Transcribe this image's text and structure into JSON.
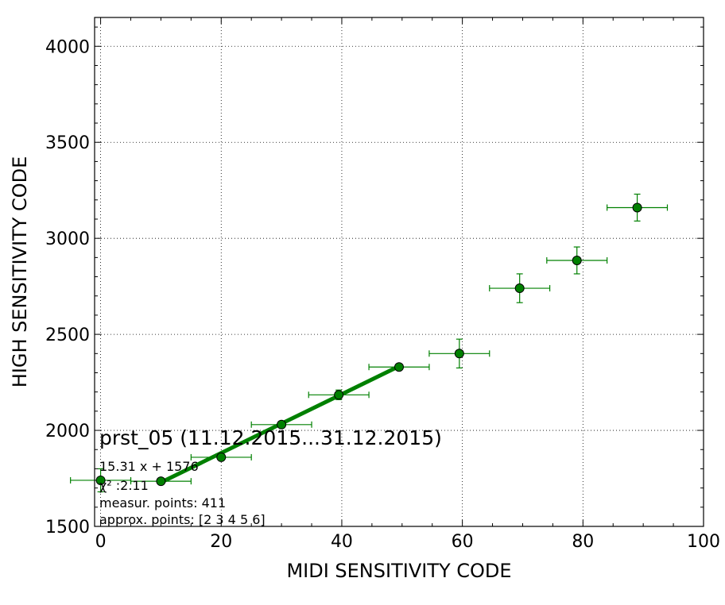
{
  "chart_data": {
    "type": "scatter",
    "title": "prst_05 (11.12.2015...31.12.2015)",
    "xlabel": "MIDI SENSITIVITY CODE",
    "ylabel": "HIGH SENSITIVITY CODE",
    "xlim": [
      -1,
      100
    ],
    "ylim": [
      1500,
      4150
    ],
    "xticks": [
      0,
      20,
      40,
      60,
      80,
      100
    ],
    "yticks": [
      1500,
      2000,
      2500,
      3000,
      3500,
      4000
    ],
    "grid": true,
    "series": [
      {
        "role": "measurements",
        "color": "#008000",
        "points": [
          {
            "x": 0,
            "y": 1740,
            "xerr": 5,
            "yerr": 60
          },
          {
            "x": 10,
            "y": 1735,
            "xerr": 5,
            "yerr": 10
          },
          {
            "x": 20,
            "y": 1860,
            "xerr": 5,
            "yerr": 12
          },
          {
            "x": 30,
            "y": 2030,
            "xerr": 5,
            "yerr": 15
          },
          {
            "x": 39.5,
            "y": 2185,
            "xerr": 5,
            "yerr": 25
          },
          {
            "x": 49.5,
            "y": 2330,
            "xerr": 5,
            "yerr": 15
          },
          {
            "x": 59.5,
            "y": 2400,
            "xerr": 5,
            "yerr": 75
          },
          {
            "x": 69.5,
            "y": 2740,
            "xerr": 5,
            "yerr": 75
          },
          {
            "x": 79,
            "y": 2885,
            "xerr": 5,
            "yerr": 70
          },
          {
            "x": 89,
            "y": 3160,
            "xerr": 5,
            "yerr": 70
          }
        ]
      },
      {
        "role": "fit",
        "color": "#008000",
        "slope": 15.31,
        "intercept": 1576,
        "x_range": [
          10,
          49.5
        ]
      }
    ],
    "annotations": [
      "15.31 x + 1576",
      "χ² :2.11",
      "measur. points: 411",
      "approx. points: [2 3 4 5 6]"
    ]
  }
}
